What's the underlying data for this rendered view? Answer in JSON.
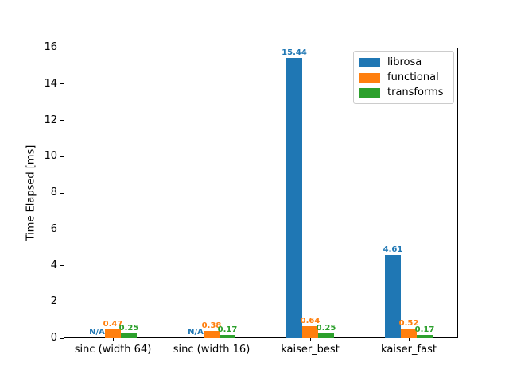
{
  "figure": {
    "background": "#ffffff"
  },
  "chart_data": {
    "type": "bar",
    "title": "",
    "xlabel": "",
    "ylabel": "Time Elapsed [ms]",
    "ylim": [
      0,
      16
    ],
    "yticks": [
      0,
      2,
      4,
      6,
      8,
      10,
      12,
      14,
      16
    ],
    "grid": false,
    "categories": [
      "sinc (width 64)",
      "sinc (width 16)",
      "kaiser_best",
      "kaiser_fast"
    ],
    "series": [
      {
        "name": "librosa",
        "color": "#1f77b4",
        "values": [
          null,
          null,
          15.44,
          4.61
        ],
        "bar_labels": [
          "N/A",
          "N/A",
          "15.44",
          "4.61"
        ]
      },
      {
        "name": "functional",
        "color": "#ff7f0e",
        "values": [
          0.47,
          0.38,
          0.64,
          0.52
        ],
        "bar_labels": [
          "0.47",
          "0.38",
          "0.64",
          "0.52"
        ]
      },
      {
        "name": "transforms",
        "color": "#2ca02c",
        "values": [
          0.25,
          0.17,
          0.25,
          0.17
        ],
        "bar_labels": [
          "0.25",
          "0.17",
          "0.25",
          "0.17"
        ]
      }
    ],
    "legend": {
      "position": "upper right",
      "entries": [
        "librosa",
        "functional",
        "transforms"
      ]
    },
    "axis_color": "#000000",
    "legend_border_color": "#cccccc"
  }
}
